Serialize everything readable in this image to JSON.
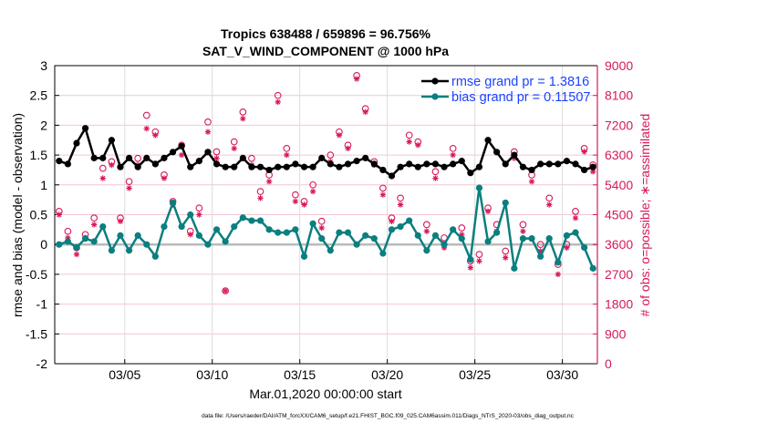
{
  "chart_data": {
    "type": "line",
    "title": "Tropics 638488 / 659896 = 96.756%",
    "subtitle": "SAT_V_WIND_COMPONENT @ 1000 hPa",
    "xlabel": "Mar.01,2020 00:00:00 start",
    "ylabel": "rmse and bias (model - observation)",
    "ylabel_right": "# of obs: o=possible; ∗=assimilated",
    "footer": "data file: /Users/raeder/DAI/ATM_forcXX/CAM6_setup/f.e21.FHIST_BGC.f09_025.CAM6assim.011/Diags_NTrS_2020-03/obs_diag_output.nc",
    "ylim": [
      -2,
      3
    ],
    "ylim_right": [
      0,
      9000
    ],
    "yticks": [
      "-2",
      "-1.5",
      "-1",
      "-0.5",
      "0",
      "0.5",
      "1",
      "1.5",
      "2",
      "2.5",
      "3"
    ],
    "yticks_right": [
      "0",
      "900",
      "1800",
      "2700",
      "3600",
      "4500",
      "5400",
      "6300",
      "7200",
      "8100",
      "9000"
    ],
    "xticks": [
      {
        "date": "2020-03-05T00:00",
        "label": "03/05"
      },
      {
        "date": "2020-03-10T00:00",
        "label": "03/10"
      },
      {
        "date": "2020-03-15T00:00",
        "label": "03/15"
      },
      {
        "date": "2020-03-20T00:00",
        "label": "03/20"
      },
      {
        "date": "2020-03-25T00:00",
        "label": "03/25"
      },
      {
        "date": "2020-03-30T00:00",
        "label": "03/30"
      }
    ],
    "xlim": [
      "2020-03-01T00:00",
      "2020-03-31T18:00"
    ],
    "grid": true,
    "legend_placement": "top-right",
    "colors": {
      "rmse": "#000000",
      "bias": "#0b7f7f",
      "obs": "#d6185c",
      "legend_text": "#1a44ff",
      "zero_line": "#bbbbbb"
    },
    "x": [
      "2020-03-01T06:00",
      "2020-03-01T18:00",
      "2020-03-02T06:00",
      "2020-03-02T18:00",
      "2020-03-03T06:00",
      "2020-03-03T18:00",
      "2020-03-04T06:00",
      "2020-03-04T18:00",
      "2020-03-05T06:00",
      "2020-03-05T18:00",
      "2020-03-06T06:00",
      "2020-03-06T18:00",
      "2020-03-07T06:00",
      "2020-03-07T18:00",
      "2020-03-08T06:00",
      "2020-03-08T18:00",
      "2020-03-09T06:00",
      "2020-03-09T18:00",
      "2020-03-10T06:00",
      "2020-03-10T18:00",
      "2020-03-11T06:00",
      "2020-03-11T18:00",
      "2020-03-12T06:00",
      "2020-03-12T18:00",
      "2020-03-13T06:00",
      "2020-03-13T18:00",
      "2020-03-14T06:00",
      "2020-03-14T18:00",
      "2020-03-15T06:00",
      "2020-03-15T18:00",
      "2020-03-16T06:00",
      "2020-03-16T18:00",
      "2020-03-17T06:00",
      "2020-03-17T18:00",
      "2020-03-18T06:00",
      "2020-03-18T18:00",
      "2020-03-19T06:00",
      "2020-03-19T18:00",
      "2020-03-20T06:00",
      "2020-03-20T18:00",
      "2020-03-21T06:00",
      "2020-03-21T18:00",
      "2020-03-22T06:00",
      "2020-03-22T18:00",
      "2020-03-23T06:00",
      "2020-03-23T18:00",
      "2020-03-24T06:00",
      "2020-03-24T18:00",
      "2020-03-25T06:00",
      "2020-03-25T18:00",
      "2020-03-26T06:00",
      "2020-03-26T18:00",
      "2020-03-27T06:00",
      "2020-03-27T18:00",
      "2020-03-28T06:00",
      "2020-03-28T18:00",
      "2020-03-29T06:00",
      "2020-03-29T18:00",
      "2020-03-30T06:00",
      "2020-03-30T18:00",
      "2020-03-31T06:00",
      "2020-03-31T18:00"
    ],
    "series": [
      {
        "name": "rmse grand pr = 1.3816",
        "axis": "left",
        "values": [
          1.4,
          1.35,
          1.7,
          1.95,
          1.45,
          1.45,
          1.75,
          1.3,
          1.45,
          1.3,
          1.45,
          1.35,
          1.45,
          1.55,
          1.65,
          1.3,
          1.4,
          1.55,
          1.35,
          1.3,
          1.3,
          1.45,
          1.3,
          1.3,
          1.25,
          1.3,
          1.3,
          1.35,
          1.3,
          1.3,
          1.45,
          1.35,
          1.3,
          1.35,
          1.4,
          1.45,
          1.35,
          1.25,
          1.15,
          1.3,
          1.35,
          1.3,
          1.35,
          1.35,
          1.3,
          1.35,
          1.4,
          1.2,
          1.3,
          1.75,
          1.55,
          1.35,
          1.5,
          1.3,
          1.25,
          1.35,
          1.35,
          1.35,
          1.4,
          1.35,
          1.25,
          1.3
        ]
      },
      {
        "name": "bias grand pr = 0.11507",
        "axis": "left",
        "values": [
          0.0,
          0.05,
          -0.05,
          0.1,
          0.05,
          0.3,
          -0.1,
          0.15,
          -0.1,
          0.15,
          0.0,
          -0.2,
          0.3,
          0.7,
          0.3,
          0.5,
          0.15,
          0.0,
          0.25,
          0.05,
          0.3,
          0.45,
          0.4,
          0.4,
          0.25,
          0.2,
          0.2,
          0.25,
          -0.2,
          0.35,
          0.1,
          -0.1,
          0.2,
          0.2,
          0.0,
          0.15,
          0.1,
          -0.15,
          0.25,
          0.3,
          0.4,
          0.15,
          -0.1,
          0.15,
          0.0,
          0.25,
          0.1,
          -0.25,
          0.95,
          0.05,
          0.2,
          0.7,
          -0.4,
          0.1,
          0.1,
          -0.2,
          0.1,
          -0.3,
          0.15,
          0.2,
          -0.05,
          -0.4
        ]
      },
      {
        "name": "possible",
        "axis": "right",
        "marker": "circle",
        "values": [
          4600,
          4000,
          3500,
          3900,
          4400,
          5900,
          6100,
          4400,
          5500,
          6200,
          7500,
          7000,
          5700,
          4900,
          6600,
          4000,
          4700,
          7300,
          6400,
          2200,
          6700,
          7600,
          6200,
          5200,
          5700,
          8100,
          6500,
          5100,
          4900,
          5400,
          4300,
          6300,
          7000,
          6600,
          8700,
          7700,
          6100,
          5300,
          4400,
          5000,
          6900,
          6700,
          4200,
          5800,
          3800,
          6500,
          4100,
          3100,
          3300,
          4700,
          4200,
          3400,
          6400,
          4200,
          5700,
          3600,
          5000,
          3000,
          3600,
          4600,
          6500,
          6000
        ]
      },
      {
        "name": "assimilated",
        "axis": "right",
        "marker": "asterisk",
        "values": [
          4500,
          3800,
          3300,
          3800,
          4200,
          5600,
          6000,
          4300,
          5300,
          6000,
          7100,
          6900,
          5600,
          4800,
          6300,
          3900,
          4500,
          7000,
          6200,
          2200,
          6500,
          7400,
          6000,
          5000,
          5500,
          7900,
          6300,
          4900,
          4800,
          5200,
          4100,
          6100,
          6900,
          6500,
          8600,
          7600,
          6000,
          5100,
          4300,
          4800,
          6700,
          6600,
          4000,
          5600,
          3500,
          6300,
          3900,
          2900,
          3100,
          4600,
          4000,
          3200,
          6200,
          4000,
          5500,
          3400,
          4800,
          2700,
          3500,
          4400,
          6400,
          5800
        ]
      }
    ]
  }
}
